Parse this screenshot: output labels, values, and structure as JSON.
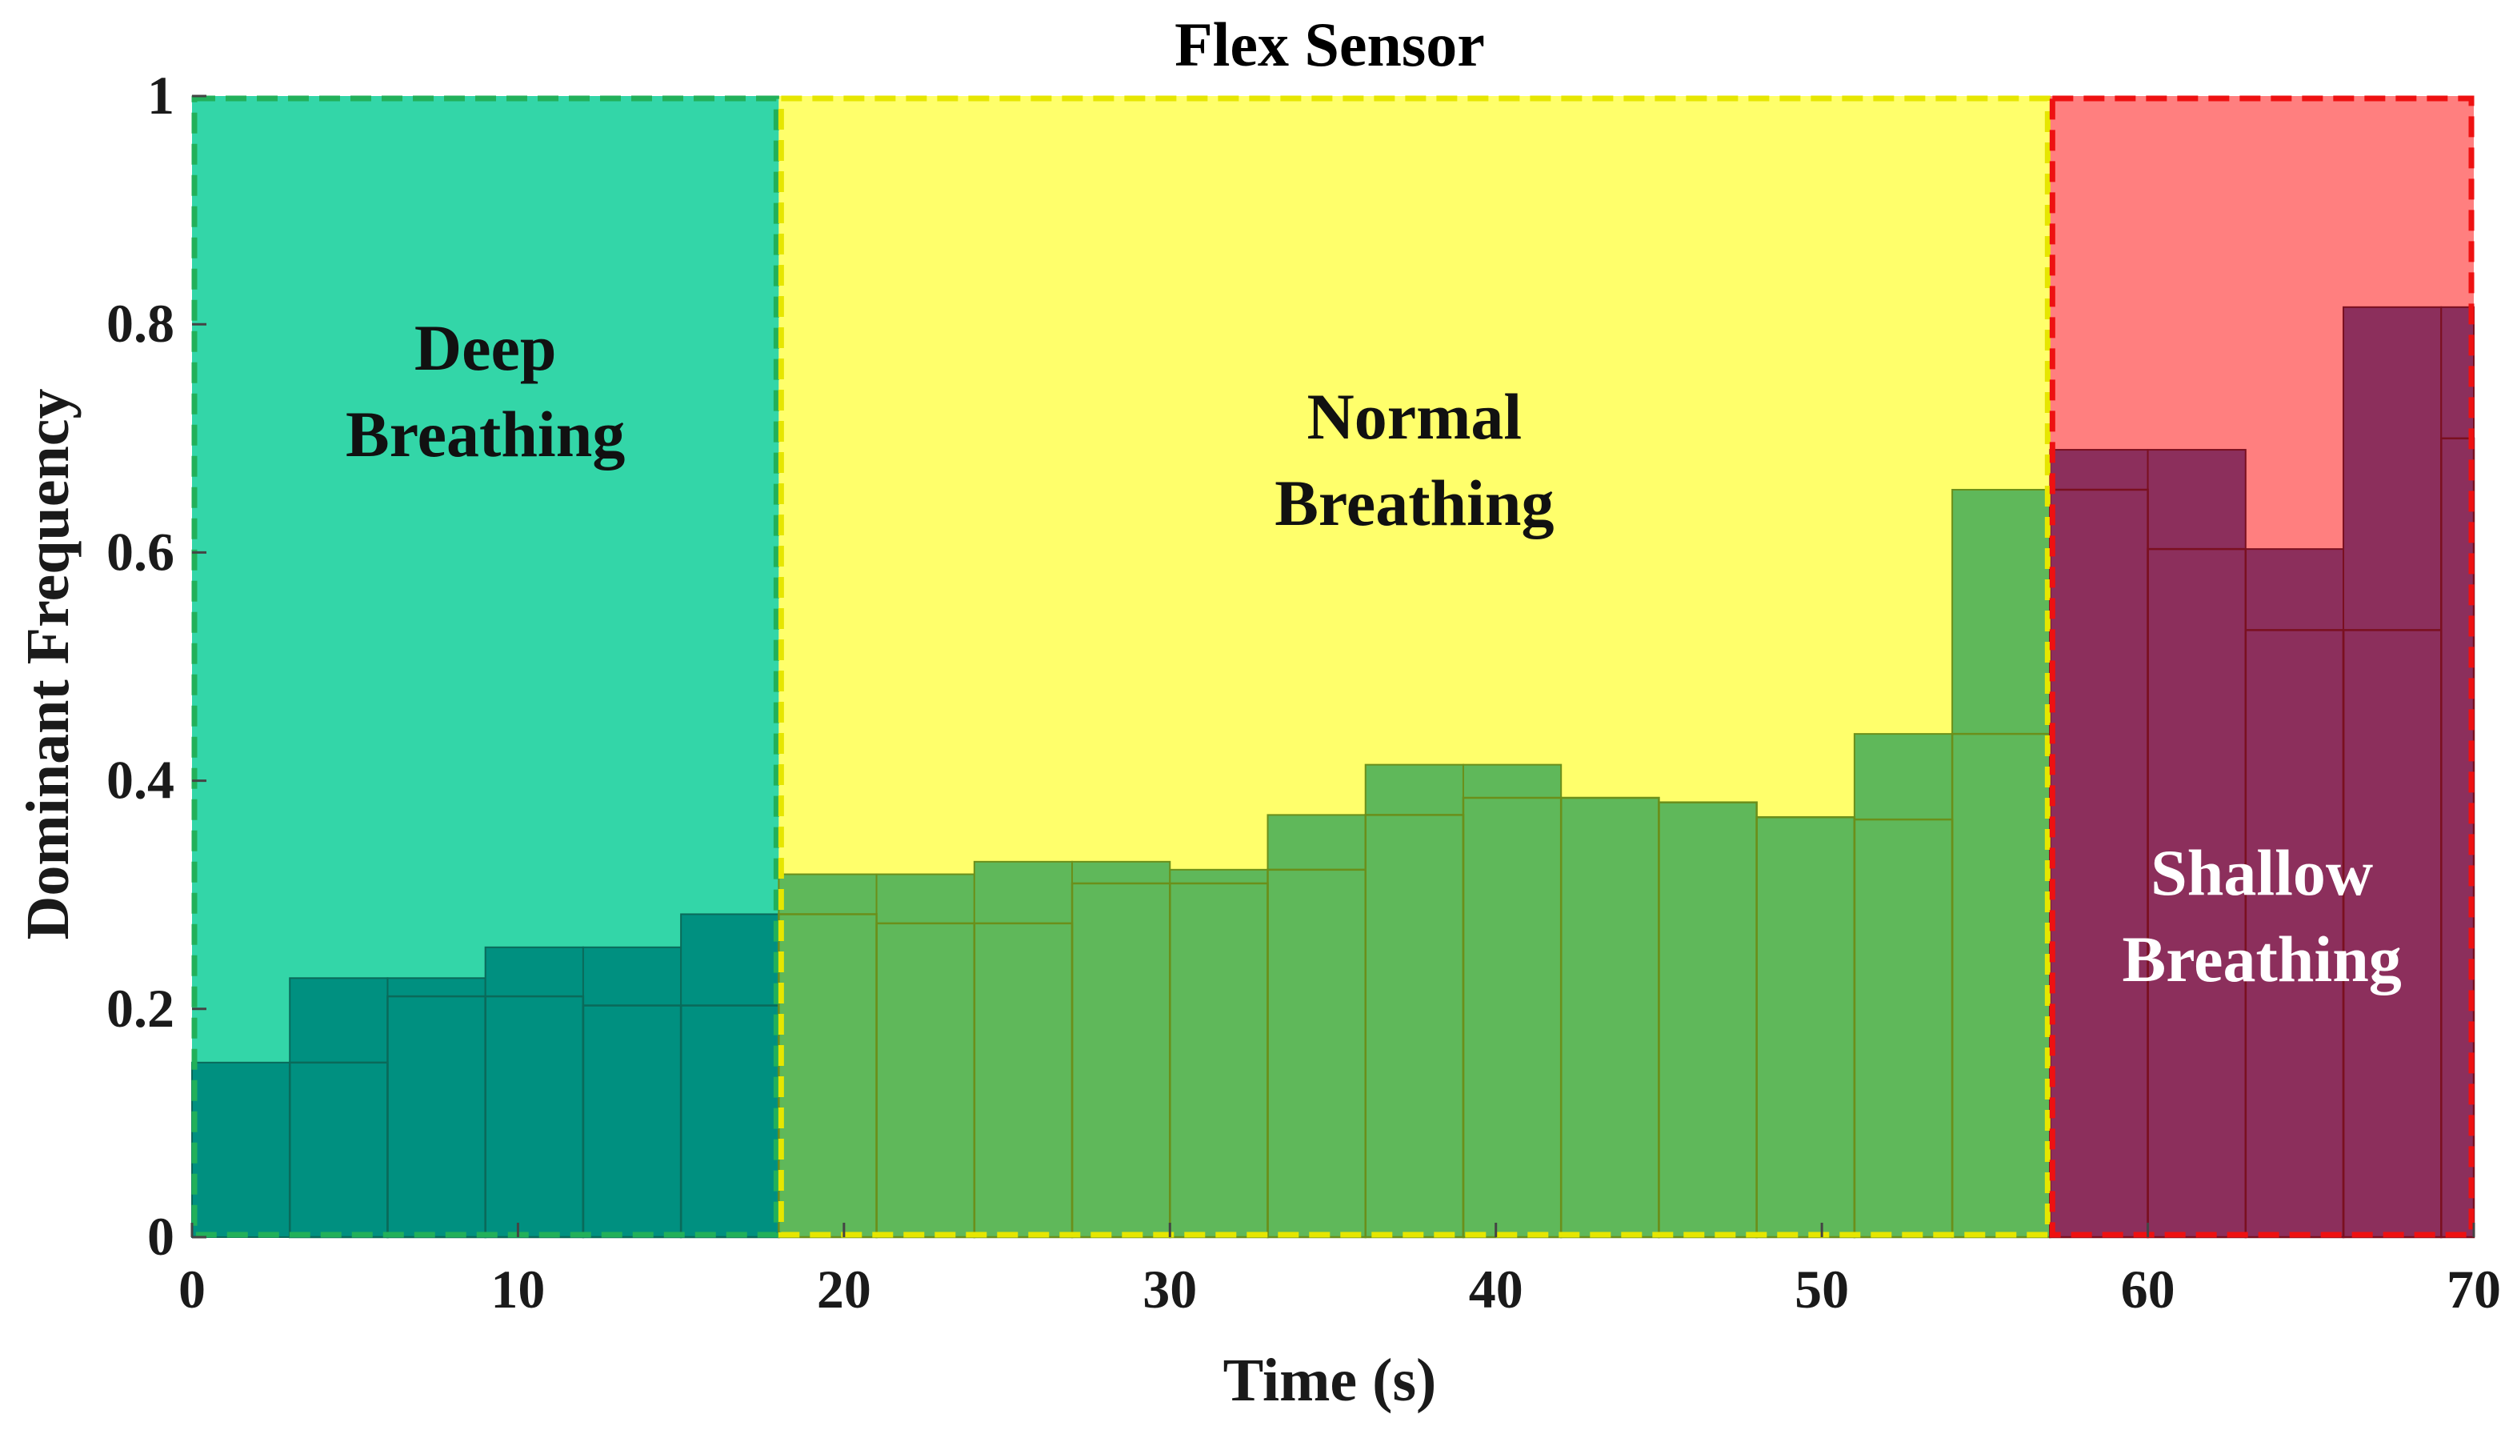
{
  "chart_data": {
    "type": "bar",
    "title": "Flex Sensor",
    "xlabel": "Time (s)",
    "ylabel": "Dominant Frequency",
    "xlim": [
      0,
      70
    ],
    "ylim": [
      0,
      1
    ],
    "xticks": [
      0,
      10,
      20,
      30,
      40,
      50,
      60,
      70
    ],
    "yticks": [
      0,
      0.2,
      0.4,
      0.6,
      0.8,
      1
    ],
    "ytick_labels": [
      "0",
      "0.2",
      "0.4",
      "0.6",
      "0.8",
      "1"
    ],
    "grid": false,
    "regions": [
      {
        "name": "deep",
        "label_lines": [
          "Deep",
          "Breathing"
        ],
        "x_start": 0,
        "x_end": 18,
        "fill": "#33d6a8",
        "border": "#22b05a",
        "bar_fill": "#009080",
        "bar_edge": "#0a6a5a",
        "text_color": "#111111"
      },
      {
        "name": "normal",
        "label_lines": [
          "Normal",
          "Breathing"
        ],
        "x_start": 18,
        "x_end": 57,
        "fill": "#ffff6b",
        "border": "#e6e600",
        "bar_fill": "#5fb85a",
        "bar_edge": "#6b8f1a",
        "text_color": "#111111"
      },
      {
        "name": "shallow",
        "label_lines": [
          "Shallow",
          "Breathing"
        ],
        "x_start": 57,
        "x_end": 70,
        "fill": "#ff7f7f",
        "border": "#ee1111",
        "bar_fill": "#8c2f5c",
        "bar_edge": "#7a1020",
        "text_color": "#ffffff"
      }
    ],
    "series": [
      {
        "region": "deep",
        "bars": [
          {
            "x0": 0,
            "x1": 3,
            "y": 0.153
          },
          {
            "x0": 3,
            "x1": 6,
            "y": 0.227
          },
          {
            "x0": 6,
            "x1": 9,
            "y": 0.227
          },
          {
            "x0": 9,
            "x1": 12,
            "y": 0.254
          },
          {
            "x0": 12,
            "x1": 15,
            "y": 0.254
          },
          {
            "x0": 15,
            "x1": 18,
            "y": 0.283
          }
        ],
        "overlay": [
          {
            "x0": 3,
            "x1": 6,
            "y": 0.153
          },
          {
            "x0": 6,
            "x1": 9,
            "y": 0.211
          },
          {
            "x0": 9,
            "x1": 12,
            "y": 0.211
          },
          {
            "x0": 12,
            "x1": 15,
            "y": 0.203
          },
          {
            "x0": 15,
            "x1": 18,
            "y": 0.203
          }
        ]
      },
      {
        "region": "normal",
        "bars": [
          {
            "x0": 18,
            "x1": 21,
            "y": 0.318
          },
          {
            "x0": 21,
            "x1": 24,
            "y": 0.318
          },
          {
            "x0": 24,
            "x1": 27,
            "y": 0.329
          },
          {
            "x0": 27,
            "x1": 30,
            "y": 0.329
          },
          {
            "x0": 30,
            "x1": 33,
            "y": 0.322
          },
          {
            "x0": 33,
            "x1": 36,
            "y": 0.37
          },
          {
            "x0": 36,
            "x1": 39,
            "y": 0.414
          },
          {
            "x0": 39,
            "x1": 42,
            "y": 0.414
          },
          {
            "x0": 42,
            "x1": 45,
            "y": 0.385
          },
          {
            "x0": 45,
            "x1": 48,
            "y": 0.381
          },
          {
            "x0": 48,
            "x1": 51,
            "y": 0.368
          },
          {
            "x0": 51,
            "x1": 54,
            "y": 0.441
          },
          {
            "x0": 54,
            "x1": 57,
            "y": 0.655
          }
        ],
        "overlay": [
          {
            "x0": 18,
            "x1": 21,
            "y": 0.283
          },
          {
            "x0": 21,
            "x1": 24,
            "y": 0.275
          },
          {
            "x0": 24,
            "x1": 27,
            "y": 0.275
          },
          {
            "x0": 27,
            "x1": 30,
            "y": 0.31
          },
          {
            "x0": 30,
            "x1": 33,
            "y": 0.31
          },
          {
            "x0": 33,
            "x1": 36,
            "y": 0.322
          },
          {
            "x0": 36,
            "x1": 39,
            "y": 0.37
          },
          {
            "x0": 39,
            "x1": 42,
            "y": 0.385
          },
          {
            "x0": 42,
            "x1": 45,
            "y": 0.385
          },
          {
            "x0": 45,
            "x1": 48,
            "y": 0.381
          },
          {
            "x0": 48,
            "x1": 51,
            "y": 0.368
          },
          {
            "x0": 51,
            "x1": 54,
            "y": 0.366
          },
          {
            "x0": 54,
            "x1": 57,
            "y": 0.441
          }
        ]
      },
      {
        "region": "shallow",
        "bars": [
          {
            "x0": 57,
            "x1": 60,
            "y": 0.69
          },
          {
            "x0": 60,
            "x1": 63,
            "y": 0.69
          },
          {
            "x0": 63,
            "x1": 66,
            "y": 0.603
          },
          {
            "x0": 66,
            "x1": 69,
            "y": 0.815
          },
          {
            "x0": 69,
            "x1": 70,
            "y": 0.815
          }
        ],
        "overlay": [
          {
            "x0": 57,
            "x1": 60,
            "y": 0.655
          },
          {
            "x0": 60,
            "x1": 63,
            "y": 0.603
          },
          {
            "x0": 63,
            "x1": 66,
            "y": 0.532
          },
          {
            "x0": 66,
            "x1": 69,
            "y": 0.532
          },
          {
            "x0": 69,
            "x1": 70,
            "y": 0.7
          }
        ]
      }
    ]
  }
}
